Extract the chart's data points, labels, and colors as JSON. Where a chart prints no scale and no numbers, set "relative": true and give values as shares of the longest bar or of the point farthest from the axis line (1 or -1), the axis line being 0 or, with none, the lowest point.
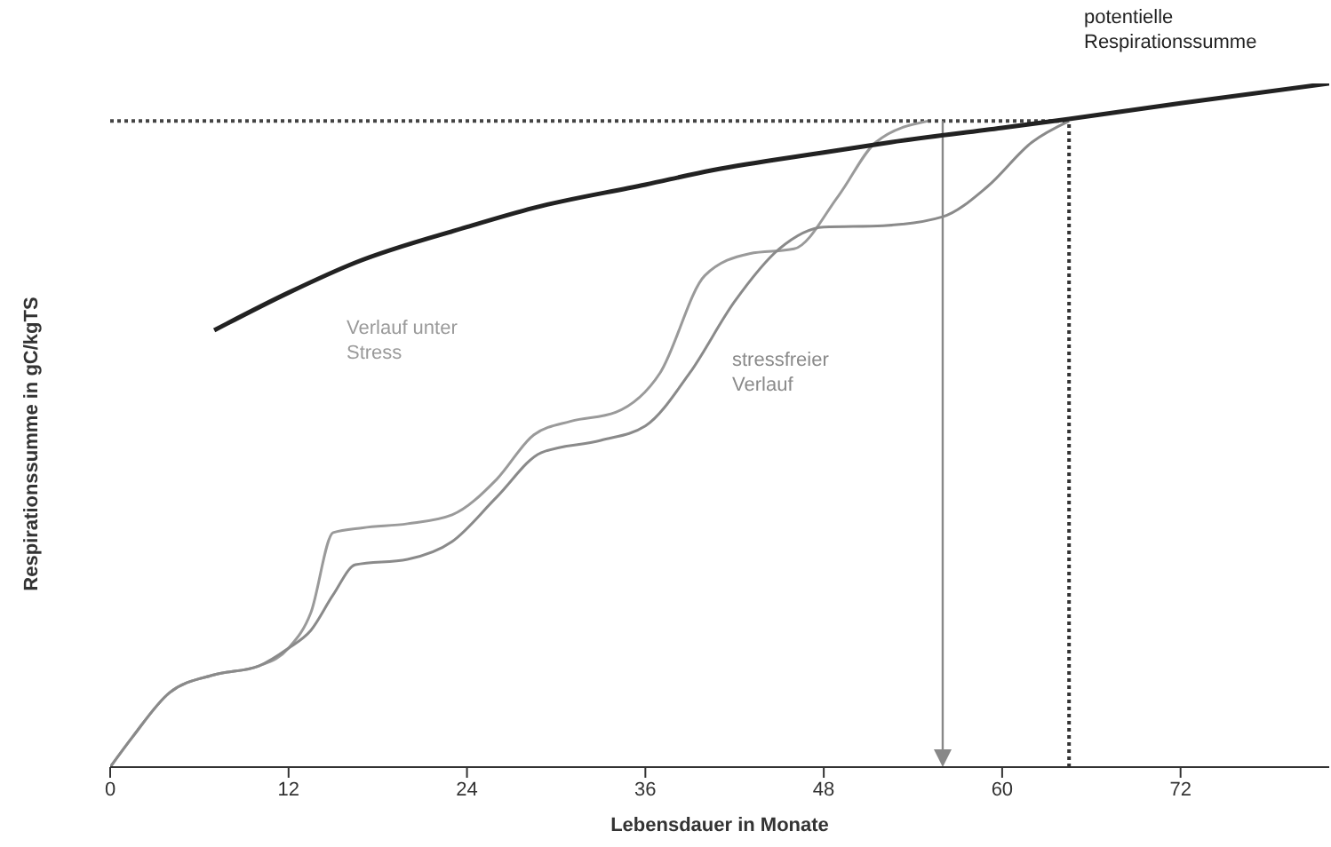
{
  "chart_data": {
    "type": "line",
    "relative": true,
    "xlabel": "Lebensdauer in Monate",
    "ylabel": "Respirationssumme in gC/kgTS",
    "xlim": [
      0,
      82
    ],
    "xticks": [
      0,
      12,
      24,
      36,
      48,
      60,
      72
    ],
    "grid": false,
    "legend": false,
    "marker": "none",
    "line_style": "solid",
    "series": [
      {
        "name": "Verlauf unter Stress",
        "color": "#9a9a9a",
        "x": [
          0,
          1.5,
          4,
          7,
          10,
          12,
          13.5,
          15,
          17,
          20,
          23,
          26,
          28.5,
          31,
          34,
          37,
          40,
          43,
          46,
          49,
          51.5,
          55
        ],
        "values": [
          0,
          0.044,
          0.109,
          0.135,
          0.148,
          0.174,
          0.226,
          0.343,
          0.35,
          0.356,
          0.369,
          0.421,
          0.486,
          0.506,
          0.519,
          0.577,
          0.719,
          0.751,
          0.758,
          0.836,
          0.914,
          0.945
        ]
      },
      {
        "name": "stressfreier Verlauf",
        "color": "#8a8a8a",
        "x": [
          0,
          1.5,
          4,
          7,
          10,
          12,
          13.5,
          15,
          16.5,
          20,
          23,
          26,
          29,
          33,
          36,
          39,
          42,
          45,
          48,
          52,
          56,
          59,
          62,
          64.5
        ],
        "values": [
          0,
          0.044,
          0.109,
          0.135,
          0.148,
          0.174,
          0.2,
          0.252,
          0.296,
          0.304,
          0.33,
          0.395,
          0.46,
          0.478,
          0.499,
          0.577,
          0.681,
          0.758,
          0.79,
          0.792,
          0.805,
          0.849,
          0.914,
          0.945
        ]
      },
      {
        "name": "potentielle Respirationssumme",
        "color": "#222222",
        "x": [
          7,
          12,
          16.5,
          24,
          28.5,
          36,
          40.5,
          48,
          52.5,
          60,
          64.5,
          72,
          82
        ],
        "values": [
          0.639,
          0.694,
          0.738,
          0.79,
          0.818,
          0.852,
          0.873,
          0.899,
          0.914,
          0.935,
          0.948,
          0.971,
          1
        ]
      }
    ],
    "ref_lines": [
      {
        "axis": "y",
        "value": 0.945,
        "color": "#444444",
        "line_style": "dotted"
      },
      {
        "axis": "x",
        "value": 56,
        "color": "#888888",
        "line_style": "solid"
      },
      {
        "axis": "x",
        "value": 64.5,
        "color": "#333333",
        "line_style": "dotted"
      }
    ]
  }
}
